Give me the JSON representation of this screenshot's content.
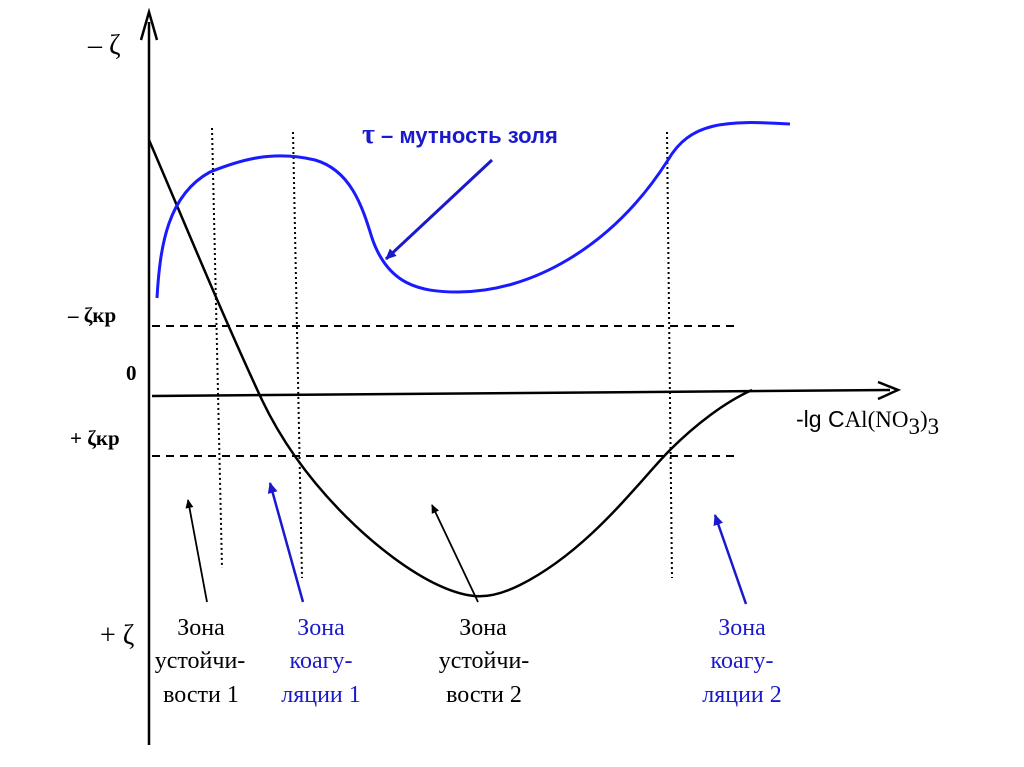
{
  "axes": {
    "y_top_label": "– ζ",
    "y_bottom_label": "+ ζ",
    "x_label_prefix": "-lg C",
    "x_label_formula_main": "Al(NO",
    "x_label_sub1": "3",
    "x_label_close": ")",
    "x_label_sub2": "3",
    "zero_label": "0",
    "neg_crit_label": "– ζкр",
    "pos_crit_label": "+ ζкр"
  },
  "turbidity": {
    "symbol": "τ",
    "text": " – мутность золя"
  },
  "zones": [
    {
      "lines": [
        "Зона",
        "устойчи-",
        "вости 1"
      ],
      "color": "#000000"
    },
    {
      "lines": [
        "Зона",
        "коагу-",
        "ляции 1"
      ],
      "color": "#1a1acc"
    },
    {
      "lines": [
        "Зона",
        "устойчи-",
        "вости 2"
      ],
      "color": "#000000"
    },
    {
      "lines": [
        "Зона",
        "коагу-",
        "ляции 2"
      ],
      "color": "#1a1acc"
    }
  ],
  "colors": {
    "blue_curve": "#1a1aff",
    "blue_text": "#1a1acc",
    "black": "#000000"
  }
}
